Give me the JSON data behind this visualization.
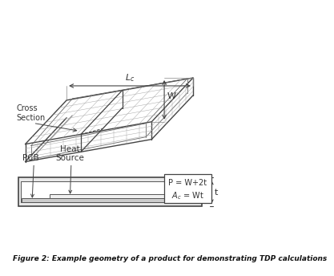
{
  "title": "Figure 2: Example geometry of a product for demonstrating TDP calculations",
  "title_fontsize": 7.5,
  "title_style": "italic",
  "background_color": "#ffffff",
  "text_color": "#333333",
  "line_color": "#444444",
  "box_text_line1": "P = W+2t",
  "box_text_line2": "Ac = Wt",
  "label_W": "W",
  "label_t": "t",
  "label_pcb": "PCB",
  "hatch_color": "#aaaaaa",
  "inner_line_color": "#666666",
  "box_edge_color": "#444444",
  "outer_fill": "#e8e8e8",
  "pcb_fill": "#cccccc",
  "hs_fill": "#f0f0f0"
}
